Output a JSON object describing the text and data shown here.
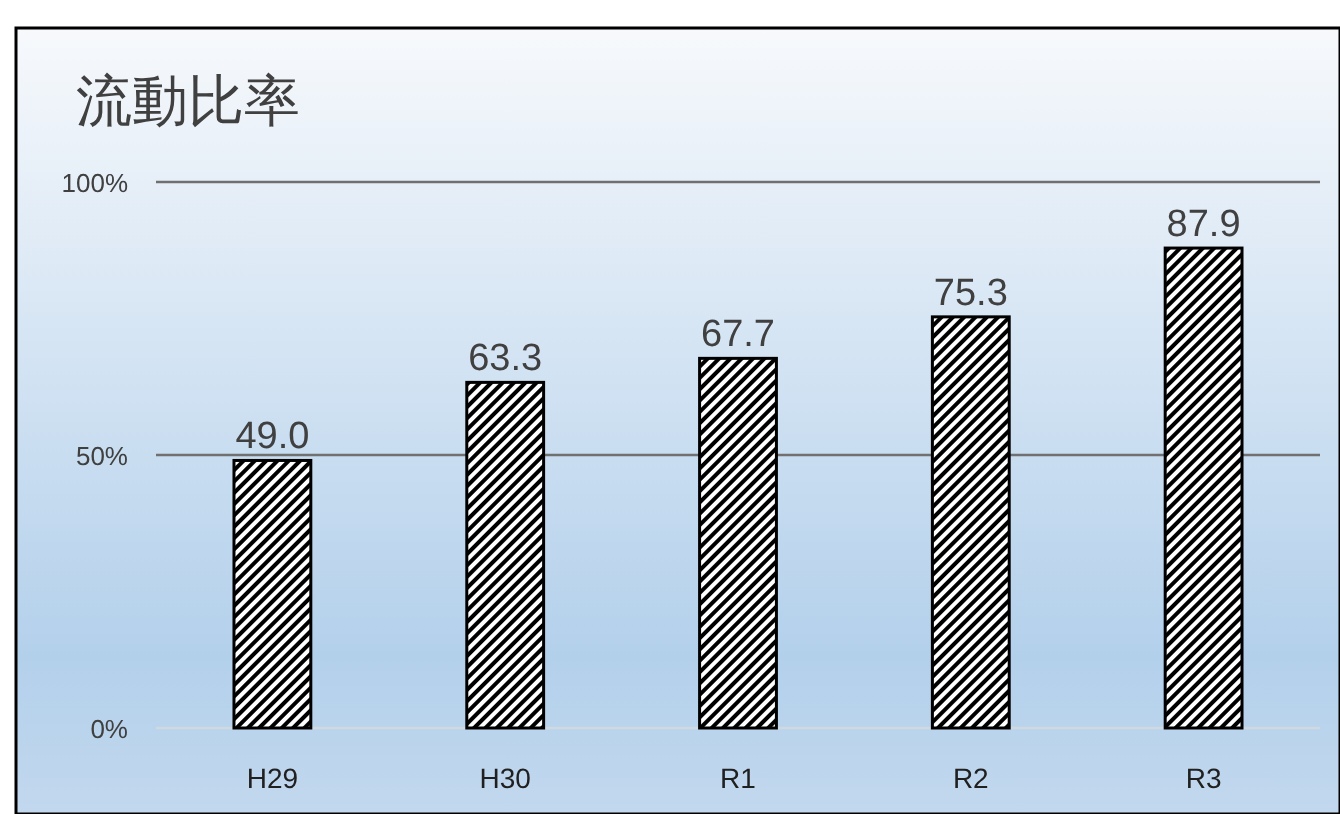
{
  "chart_data": {
    "type": "bar",
    "title": "流動比率",
    "categories": [
      "H29",
      "H30",
      "R1",
      "R2",
      "R3"
    ],
    "series": [
      {
        "color": "#000000",
        "values": [
          49.0,
          63.3,
          67.7,
          75.3,
          87.9
        ],
        "value_labels": [
          "49.0",
          "63.3",
          "67.7",
          "75.3",
          "87.9"
        ]
      }
    ],
    "ylim": [
      0,
      100
    ],
    "yticks": [
      {
        "value": 0,
        "label": "0%"
      },
      {
        "value": 50,
        "label": "50%"
      },
      {
        "value": 100,
        "label": "100%"
      }
    ],
    "grid": "y"
  }
}
